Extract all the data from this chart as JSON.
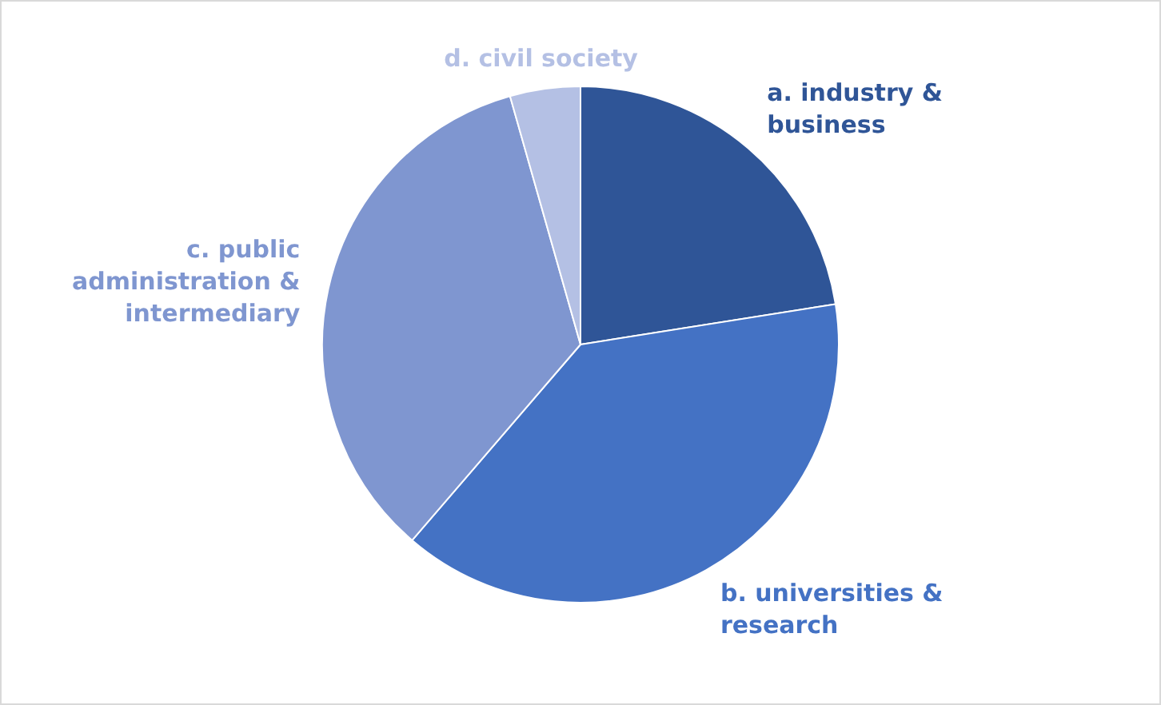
{
  "chart_data": {
    "type": "pie",
    "categories": [
      "a. industry & business",
      "b. universities & research",
      "c. public administration & intermediary",
      "d. civil society"
    ],
    "values": [
      22.5,
      38.8,
      34.3,
      4.4
    ],
    "colors": [
      "#2f5597",
      "#4472c4",
      "#7f96d0",
      "#b4c0e4"
    ],
    "legend": false
  }
}
